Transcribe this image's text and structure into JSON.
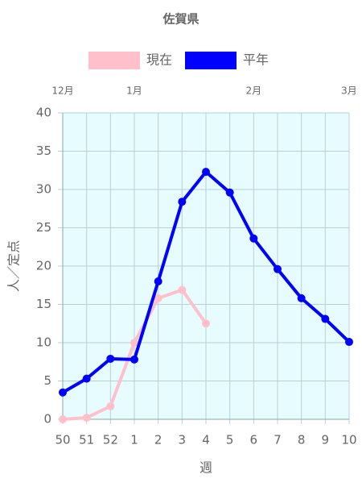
{
  "chart_data": {
    "type": "line",
    "title": "佐賀県",
    "categories": [
      "50",
      "51",
      "52",
      "1",
      "2",
      "3",
      "4",
      "5",
      "6",
      "7",
      "8",
      "9",
      "10"
    ],
    "top_labels": [
      "12月",
      null,
      null,
      "1月",
      null,
      null,
      null,
      null,
      "2月",
      null,
      null,
      null,
      "3月"
    ],
    "series": [
      {
        "name": "現在",
        "color": "#ffc0cb",
        "values": [
          0,
          0.2,
          1.7,
          10,
          15.8,
          16.9,
          12.5,
          null,
          null,
          null,
          null,
          null,
          null
        ]
      },
      {
        "name": "平年",
        "color": "#0000ff",
        "values": [
          3.5,
          5.3,
          7.9,
          7.8,
          18,
          28.4,
          32.3,
          29.6,
          23.6,
          19.6,
          15.8,
          13.1,
          10.1
        ]
      }
    ],
    "ylim": [
      0,
      40
    ],
    "yticks": [
      0,
      5,
      10,
      15,
      20,
      25,
      30,
      35,
      40
    ],
    "xlabel": "週",
    "ylabel": "人／定点",
    "grid": true,
    "plot_background": "#e6fcff"
  }
}
